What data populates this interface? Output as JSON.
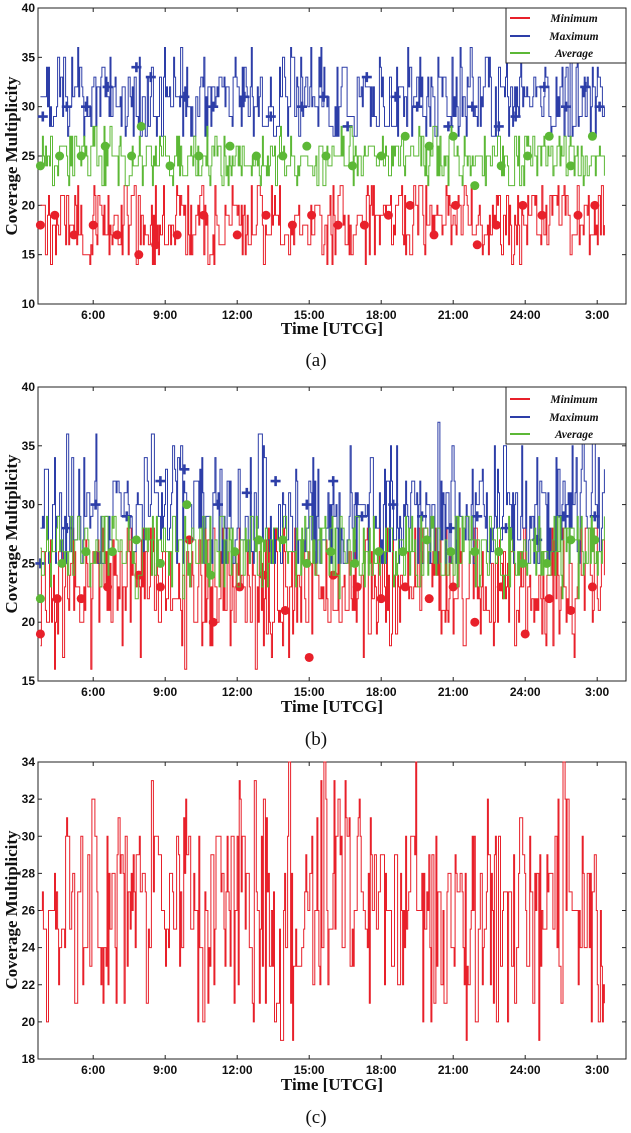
{
  "chart_data": [
    {
      "panel": "(a)",
      "type": "line",
      "xlabel": "Time [UTCG]",
      "ylabel": "Coverage Multiplicity",
      "xlim": [
        3.7,
        28.2
      ],
      "ylim": [
        10,
        40
      ],
      "yticks": [
        10,
        15,
        20,
        25,
        30,
        35,
        40
      ],
      "xticks": [
        {
          "value": 6,
          "label": "6:00"
        },
        {
          "value": 9,
          "label": "9:00"
        },
        {
          "value": 12,
          "label": "12:00"
        },
        {
          "value": 15,
          "label": "15:00"
        },
        {
          "value": 18,
          "label": "18:00"
        },
        {
          "value": 21,
          "label": "21:00"
        },
        {
          "value": 24,
          "label": "24:00"
        },
        {
          "value": 27,
          "label": "3:00"
        }
      ],
      "x_start": 3.8,
      "x_end": 27.3,
      "legend": "top-right",
      "series": [
        {
          "name": "Minimum",
          "color": "#e8202a",
          "mean": 18.3,
          "low": 14,
          "high": 22,
          "sigma": 1.5,
          "marker": "circle",
          "markers": [
            [
              3.8,
              18
            ],
            [
              4.4,
              19
            ],
            [
              5.2,
              17
            ],
            [
              6.0,
              18
            ],
            [
              7.0,
              17
            ],
            [
              7.9,
              15
            ],
            [
              8.6,
              16
            ],
            [
              9.5,
              17
            ],
            [
              10.6,
              19
            ],
            [
              12.0,
              17
            ],
            [
              13.2,
              19
            ],
            [
              14.3,
              18
            ],
            [
              15.1,
              19
            ],
            [
              16.2,
              18
            ],
            [
              17.3,
              18
            ],
            [
              18.3,
              19
            ],
            [
              19.2,
              20
            ],
            [
              20.2,
              17
            ],
            [
              21.1,
              20
            ],
            [
              22.0,
              16
            ],
            [
              22.8,
              18
            ],
            [
              23.9,
              20
            ],
            [
              24.7,
              19
            ],
            [
              26.2,
              19
            ],
            [
              26.9,
              20
            ]
          ]
        },
        {
          "name": "Maximum",
          "color": "#2d3ea8",
          "mean": 31.0,
          "low": 27,
          "high": 36,
          "sigma": 1.8,
          "marker": "plus",
          "markers": [
            [
              3.9,
              29
            ],
            [
              4.9,
              30
            ],
            [
              5.7,
              30
            ],
            [
              6.6,
              32
            ],
            [
              7.8,
              34
            ],
            [
              8.4,
              33
            ],
            [
              9.8,
              31
            ],
            [
              11.0,
              30
            ],
            [
              12.3,
              31
            ],
            [
              13.4,
              29
            ],
            [
              14.7,
              30
            ],
            [
              15.6,
              31
            ],
            [
              16.6,
              28
            ],
            [
              17.4,
              33
            ],
            [
              18.6,
              31
            ],
            [
              19.5,
              30
            ],
            [
              20.8,
              28
            ],
            [
              21.8,
              30
            ],
            [
              22.9,
              28
            ],
            [
              23.6,
              29
            ],
            [
              24.8,
              32
            ],
            [
              25.7,
              30
            ],
            [
              26.5,
              32
            ],
            [
              27.1,
              30
            ]
          ]
        },
        {
          "name": "Average",
          "color": "#5cb836",
          "mean": 24.8,
          "low": 22,
          "high": 28,
          "sigma": 1.0,
          "marker": "circle",
          "markers": [
            [
              3.8,
              24
            ],
            [
              4.6,
              25
            ],
            [
              5.5,
              25
            ],
            [
              6.5,
              26
            ],
            [
              7.6,
              25
            ],
            [
              8.0,
              28
            ],
            [
              9.2,
              24
            ],
            [
              10.4,
              25
            ],
            [
              11.7,
              26
            ],
            [
              12.8,
              25
            ],
            [
              13.9,
              25
            ],
            [
              14.9,
              26
            ],
            [
              15.7,
              25
            ],
            [
              16.8,
              24
            ],
            [
              18.0,
              25
            ],
            [
              19.0,
              27
            ],
            [
              20.0,
              26
            ],
            [
              21.0,
              27
            ],
            [
              21.9,
              22
            ],
            [
              23.0,
              24
            ],
            [
              24.1,
              25
            ],
            [
              25.0,
              27
            ],
            [
              25.9,
              24
            ],
            [
              26.8,
              27
            ]
          ]
        }
      ]
    },
    {
      "panel": "(b)",
      "type": "line",
      "xlabel": "Time [UTCG]",
      "ylabel": "Coverage Multiplicity",
      "xlim": [
        3.7,
        28.2
      ],
      "ylim": [
        15,
        40
      ],
      "yticks": [
        15,
        20,
        25,
        30,
        35,
        40
      ],
      "xticks": [
        {
          "value": 6,
          "label": "6:00"
        },
        {
          "value": 9,
          "label": "9:00"
        },
        {
          "value": 12,
          "label": "12:00"
        },
        {
          "value": 15,
          "label": "15:00"
        },
        {
          "value": 18,
          "label": "18:00"
        },
        {
          "value": 21,
          "label": "21:00"
        },
        {
          "value": 24,
          "label": "24:00"
        },
        {
          "value": 27,
          "label": "3:00"
        }
      ],
      "x_start": 3.8,
      "x_end": 27.3,
      "legend": "top-right",
      "series": [
        {
          "name": "Minimum",
          "color": "#e8202a",
          "mean": 23.0,
          "low": 16,
          "high": 28,
          "sigma": 2.2,
          "marker": "circle",
          "markers": [
            [
              3.8,
              19
            ],
            [
              4.5,
              22
            ],
            [
              5.5,
              22
            ],
            [
              6.6,
              23
            ],
            [
              7.9,
              24
            ],
            [
              8.8,
              23
            ],
            [
              10.0,
              27
            ],
            [
              11.0,
              20
            ],
            [
              12.1,
              23
            ],
            [
              13.1,
              24
            ],
            [
              14.0,
              21
            ],
            [
              15.0,
              17
            ],
            [
              16.0,
              24
            ],
            [
              17.0,
              23
            ],
            [
              18.0,
              22
            ],
            [
              19.0,
              23
            ],
            [
              20.0,
              22
            ],
            [
              21.0,
              23
            ],
            [
              21.9,
              20
            ],
            [
              23.0,
              23
            ],
            [
              24.0,
              19
            ],
            [
              25.0,
              22
            ],
            [
              25.9,
              21
            ],
            [
              26.8,
              23
            ]
          ]
        },
        {
          "name": "Maximum",
          "color": "#2d3ea8",
          "mean": 28.8,
          "low": 25,
          "high": 37,
          "sigma": 2.4,
          "marker": "plus",
          "markers": [
            [
              3.8,
              25
            ],
            [
              4.9,
              28
            ],
            [
              6.1,
              30
            ],
            [
              7.4,
              29
            ],
            [
              8.8,
              32
            ],
            [
              9.8,
              33
            ],
            [
              11.2,
              30
            ],
            [
              12.4,
              31
            ],
            [
              13.6,
              32
            ],
            [
              14.9,
              30
            ],
            [
              16.0,
              32
            ],
            [
              17.2,
              29
            ],
            [
              18.5,
              30
            ],
            [
              19.7,
              29
            ],
            [
              20.9,
              28
            ],
            [
              22.0,
              29
            ],
            [
              23.2,
              28
            ],
            [
              24.5,
              27
            ],
            [
              25.6,
              29
            ],
            [
              26.9,
              29
            ]
          ]
        },
        {
          "name": "Average",
          "color": "#5cb836",
          "mean": 26.3,
          "low": 22,
          "high": 29,
          "sigma": 1.4,
          "marker": "circle",
          "markers": [
            [
              3.8,
              22
            ],
            [
              4.7,
              25
            ],
            [
              5.7,
              26
            ],
            [
              6.8,
              26
            ],
            [
              7.8,
              27
            ],
            [
              8.8,
              25
            ],
            [
              9.9,
              30
            ],
            [
              10.9,
              24
            ],
            [
              11.9,
              26
            ],
            [
              12.9,
              27
            ],
            [
              13.9,
              27
            ],
            [
              14.9,
              25
            ],
            [
              15.9,
              26
            ],
            [
              16.9,
              25
            ],
            [
              17.9,
              26
            ],
            [
              18.9,
              26
            ],
            [
              19.9,
              27
            ],
            [
              20.9,
              26
            ],
            [
              21.9,
              26
            ],
            [
              22.9,
              26
            ],
            [
              23.9,
              25
            ],
            [
              24.9,
              25
            ],
            [
              25.9,
              27
            ],
            [
              26.9,
              27
            ]
          ]
        }
      ]
    },
    {
      "panel": "(c)",
      "type": "line",
      "xlabel": "Time [UTCG]",
      "ylabel": "Coverage Multiplicity",
      "xlim": [
        3.7,
        28.2
      ],
      "ylim": [
        18,
        34
      ],
      "yticks": [
        18,
        20,
        22,
        24,
        26,
        28,
        30,
        32,
        34
      ],
      "xticks": [
        {
          "value": 6,
          "label": "6:00"
        },
        {
          "value": 9,
          "label": "9:00"
        },
        {
          "value": 12,
          "label": "12:00"
        },
        {
          "value": 15,
          "label": "15:00"
        },
        {
          "value": 18,
          "label": "18:00"
        },
        {
          "value": 21,
          "label": "21:00"
        },
        {
          "value": 24,
          "label": "24:00"
        },
        {
          "value": 27,
          "label": "3:00"
        }
      ],
      "x_start": 3.8,
      "x_end": 27.3,
      "series": [
        {
          "color": "#e8202a",
          "mean": 26.3,
          "low": 18,
          "high": 34,
          "sigma": 2.3,
          "marker": "none",
          "markers": []
        }
      ]
    }
  ],
  "captions": [
    "(a)",
    "(b)",
    "(c)"
  ]
}
